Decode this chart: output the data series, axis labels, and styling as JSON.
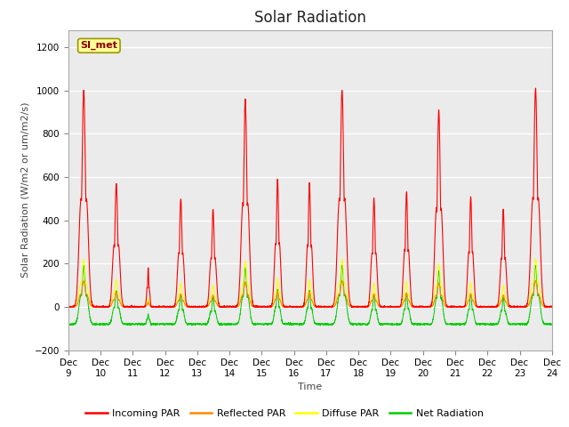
{
  "title": "Solar Radiation",
  "ylabel": "Solar Radiation (W/m2 or um/m2/s)",
  "xlabel": "Time",
  "ylim": [
    -200,
    1280
  ],
  "yticks": [
    -200,
    0,
    200,
    400,
    600,
    800,
    1000,
    1200
  ],
  "xlim_start": 9,
  "xlim_end": 24,
  "xtick_labels": [
    "Dec 9",
    "Dec 10",
    "Dec 11",
    "Dec 12",
    "Dec 13",
    "Dec 14",
    "Dec 15",
    "Dec 16",
    "Dec 17",
    "Dec 18",
    "Dec 19",
    "Dec 20",
    "Dec 21",
    "Dec 22",
    "Dec 23",
    "Dec 24"
  ],
  "station_label": "SI_met",
  "legend_entries": [
    "Incoming PAR",
    "Reflected PAR",
    "Diffuse PAR",
    "Net Radiation"
  ],
  "line_colors": [
    "#ff0000",
    "#ff8800",
    "#ffff00",
    "#00cc00"
  ],
  "plot_bg_color": "#ebebeb",
  "title_fontsize": 12,
  "label_fontsize": 8,
  "tick_fontsize": 7.5,
  "peaks_incoming": [
    1000,
    570,
    180,
    500,
    450,
    960,
    590,
    570,
    1000,
    500,
    530,
    910,
    510,
    450,
    1010
  ],
  "day_widths": [
    0.055,
    0.045,
    0.02,
    0.04,
    0.04,
    0.05,
    0.038,
    0.038,
    0.055,
    0.038,
    0.038,
    0.048,
    0.038,
    0.038,
    0.055
  ],
  "day_centers": [
    0.48,
    0.49,
    0.48,
    0.49,
    0.49,
    0.49,
    0.49,
    0.48,
    0.49,
    0.48,
    0.49,
    0.49,
    0.48,
    0.49,
    0.49
  ],
  "reflected_ratio": 0.12,
  "diffuse_ratio": 0.22,
  "net_night": -80,
  "net_ratio": 0.27
}
